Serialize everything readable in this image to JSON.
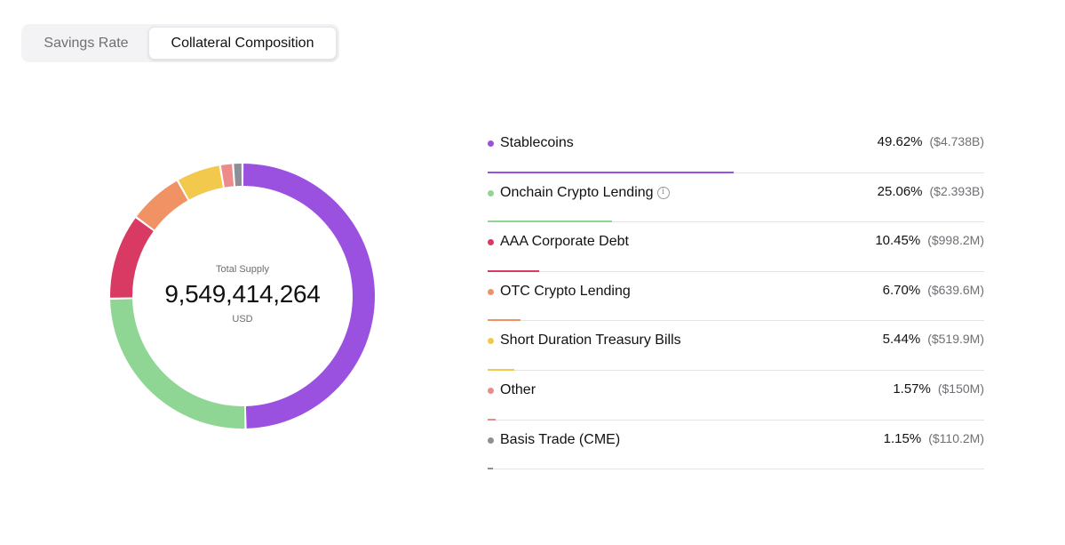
{
  "tabs": [
    {
      "label": "Savings Rate",
      "active": false
    },
    {
      "label": "Collateral Composition",
      "active": true
    }
  ],
  "summary": {
    "label": "Total Supply",
    "value": "9,549,414,264",
    "unit": "USD"
  },
  "chart_data": {
    "type": "pie",
    "style": "donut",
    "categories": [
      "Stablecoins",
      "Onchain Crypto Lending",
      "AAA Corporate Debt",
      "OTC Crypto Lending",
      "Short Duration Treasury Bills",
      "Other",
      "Basis Trade (CME)"
    ],
    "values": [
      49.62,
      25.06,
      10.45,
      6.7,
      5.44,
      1.57,
      1.15
    ],
    "colors": [
      "#9b51e0",
      "#8fd694",
      "#d93a63",
      "#f09264",
      "#f2c94c",
      "#ef8a8a",
      "#8e8e96"
    ]
  },
  "items": [
    {
      "name": "Stablecoins",
      "percent": "49.62%",
      "amount": "($4.738B)",
      "color": "#9b51e0",
      "share": 0.4962,
      "info": false
    },
    {
      "name": "Onchain Crypto Lending",
      "percent": "25.06%",
      "amount": "($2.393B)",
      "color": "#8fd694",
      "share": 0.2506,
      "info": true
    },
    {
      "name": "AAA Corporate Debt",
      "percent": "10.45%",
      "amount": "($998.2M)",
      "color": "#d93a63",
      "share": 0.1045,
      "info": false
    },
    {
      "name": "OTC Crypto Lending",
      "percent": "6.70%",
      "amount": "($639.6M)",
      "color": "#f09264",
      "share": 0.067,
      "info": false
    },
    {
      "name": "Short Duration Treasury Bills",
      "percent": "5.44%",
      "amount": "($519.9M)",
      "color": "#f2c94c",
      "share": 0.0544,
      "info": false
    },
    {
      "name": "Other",
      "percent": "1.57%",
      "amount": "($150M)",
      "color": "#ef8a8a",
      "share": 0.0157,
      "info": false
    },
    {
      "name": "Basis Trade (CME)",
      "percent": "1.15%",
      "amount": "($110.2M)",
      "color": "#8e8e96",
      "share": 0.0115,
      "info": false
    }
  ]
}
